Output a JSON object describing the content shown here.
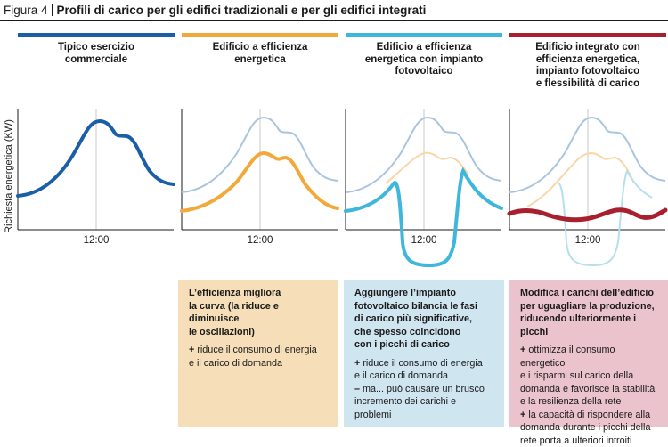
{
  "figure": {
    "label": "Figura 4",
    "title": "Profili di carico per gli edifici tradizionali e per gli edifici integrati"
  },
  "colors": {
    "col1": "#1a5ea8",
    "col2": "#f2a93b",
    "col3": "#3fb6dc",
    "col4": "#a81f2e",
    "ghost_blue": "#a9c4df",
    "ghost_orange": "#f7d6a8",
    "ghost_lightblue": "#b4e0ee",
    "note2_bg": "#f6dfb8",
    "note3_bg": "#cfe5f0",
    "note4_bg": "#ebc3cc"
  },
  "y_axis_label": "Richiesta energetica (KW)",
  "columns": [
    {
      "heading": [
        "Tipico esercizio",
        "commerciale"
      ],
      "time_label": "12:00"
    },
    {
      "heading": [
        "Edificio a efficienza",
        "energetica"
      ],
      "time_label": "12:00",
      "note": {
        "head": [
          "L’efficienza migliora",
          "la curva (la riduce e diminuisce",
          "le oscillazioni)"
        ],
        "bullets": [
          {
            "marker": "+",
            "lines": [
              "riduce il consumo di energia",
              "e il carico di domanda"
            ]
          }
        ]
      }
    },
    {
      "heading": [
        "Edificio a efficienza",
        "energetica con impianto",
        "fotovoltaico"
      ],
      "time_label": "12:00",
      "note": {
        "head": [
          "Aggiungere l’impianto",
          "fotovoltaico bilancia le fasi",
          "di carico più significative,",
          "che spesso coincidono",
          "con i picchi di carico"
        ],
        "bullets": [
          {
            "marker": "+",
            "lines": [
              "riduce il consumo di energia",
              "e il carico di domanda"
            ]
          },
          {
            "marker": "–",
            "lines": [
              "ma... può causare un brusco",
              "incremento dei carichi e problemi"
            ]
          }
        ]
      }
    },
    {
      "heading": [
        "Edificio integrato con",
        "efficienza energetica,",
        "impianto fotovoltaico",
        "e flessibilità di carico"
      ],
      "time_label": "12:00",
      "note": {
        "head": [
          "Modifica i carichi dell’edificio",
          "per uguagliare la produzione,",
          "riducendo ulteriormente i picchi"
        ],
        "bullets": [
          {
            "marker": "+",
            "lines": [
              "ottimizza il consumo energetico",
              "e i risparmi sul carico della",
              "domanda e favorisce la stabilità",
              "e la resilienza della rete"
            ]
          },
          {
            "marker": "+",
            "lines": [
              "la capacità di rispondere alla",
              "domanda durante i picchi della",
              "rete porta a ulteriori introiti"
            ]
          }
        ]
      }
    }
  ]
}
